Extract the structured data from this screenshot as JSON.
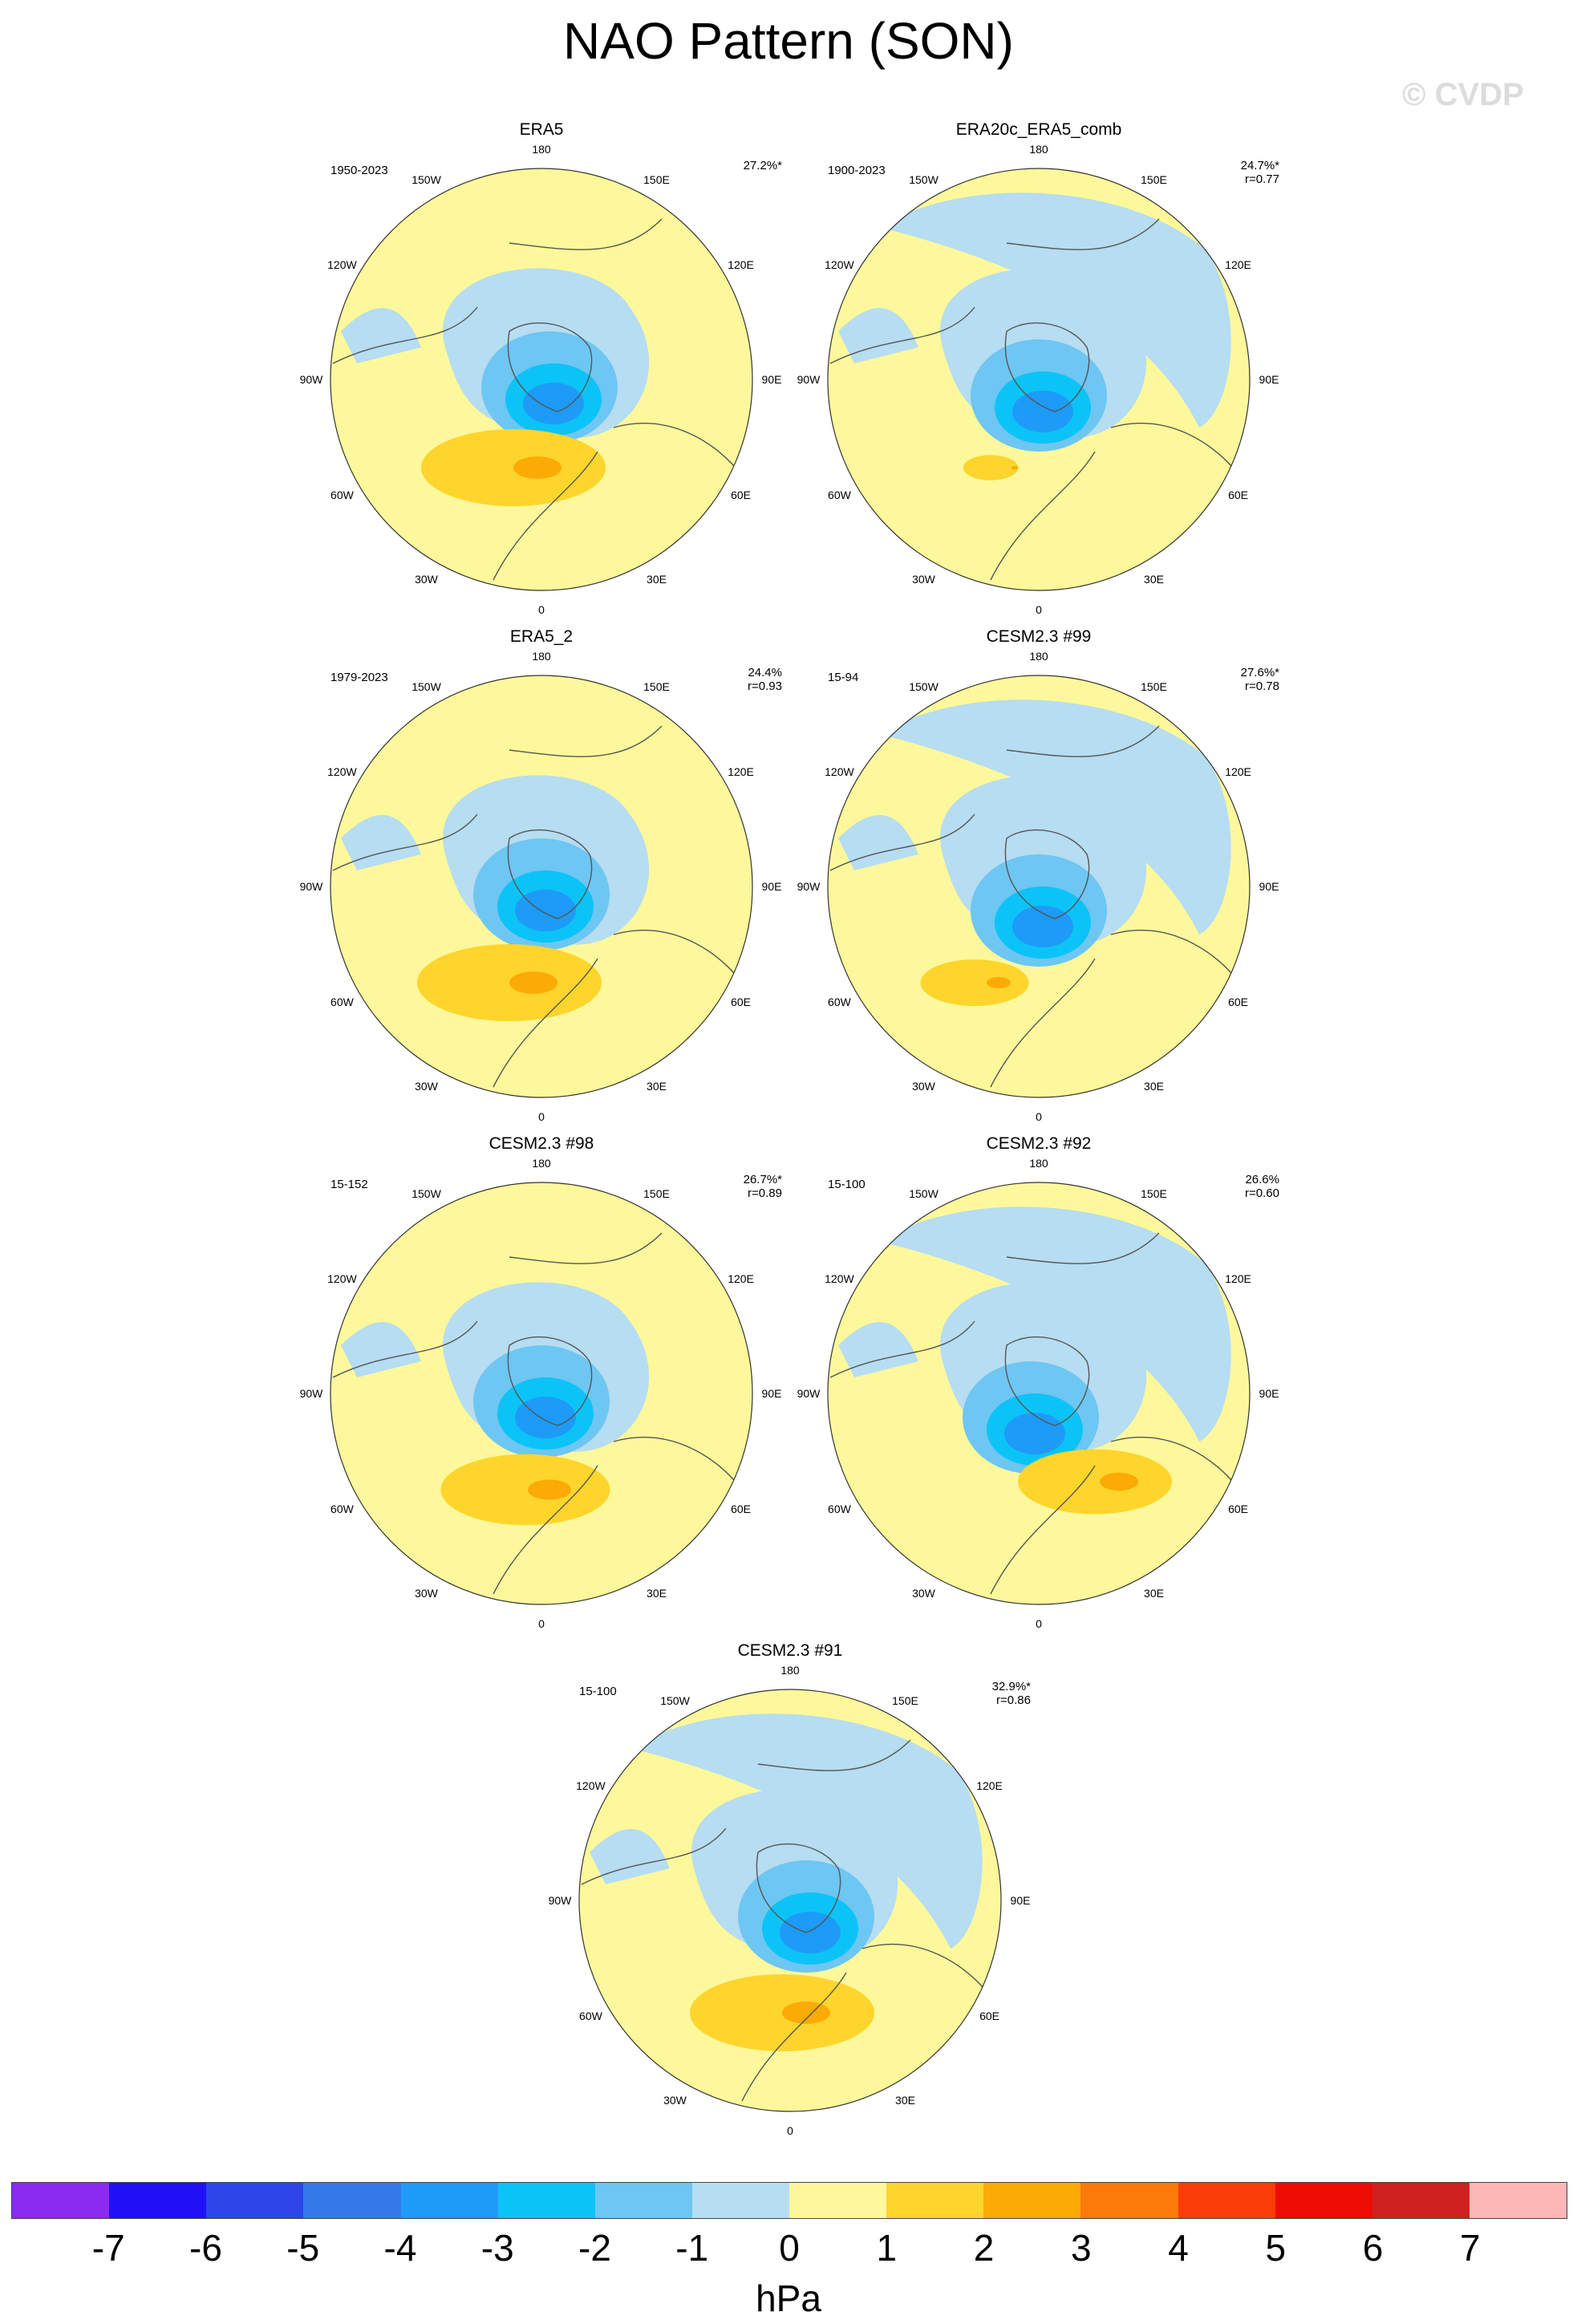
{
  "figure": {
    "title": "NAO Pattern (SON)",
    "watermark": "© CVDP"
  },
  "lon_labels": {
    "top": "180",
    "bottom": "0",
    "left": "90W",
    "right": "90E",
    "upper_left": "150W",
    "upper_right": "150E",
    "mid_upper_left": "120W",
    "mid_upper_right": "120E",
    "mid_lower_left": "60W",
    "mid_lower_right": "60E",
    "lower_left": "30W",
    "lower_right": "30E"
  },
  "panels": [
    {
      "title": "ERA5",
      "period": "1950-2023",
      "pct": "27.2%*",
      "r": ""
    },
    {
      "title": "ERA20c_ERA5_comb",
      "period": "1900-2023",
      "pct": "24.7%*",
      "r": "r=0.77"
    },
    {
      "title": "ERA5_2",
      "period": "1979-2023",
      "pct": "24.4%",
      "r": "r=0.93"
    },
    {
      "title": "CESM2.3 #99",
      "period": "15-94",
      "pct": "27.6%*",
      "r": "r=0.78"
    },
    {
      "title": "CESM2.3 #98",
      "period": "15-152",
      "pct": "26.7%*",
      "r": "r=0.89"
    },
    {
      "title": "CESM2.3 #92",
      "period": "15-100",
      "pct": "26.6%",
      "r": "r=0.60"
    },
    {
      "title": "CESM2.3 #91",
      "period": "15-100",
      "pct": "32.9%*",
      "r": "r=0.86"
    }
  ],
  "colorbar": {
    "units": "hPa",
    "labels": [
      "-7",
      "-6",
      "-5",
      "-4",
      "-3",
      "-2",
      "-1",
      "0",
      "1",
      "2",
      "3",
      "4",
      "5",
      "6",
      "7"
    ],
    "colors": [
      "#8a2bf0",
      "#1f10f5",
      "#2c46e8",
      "#3579e8",
      "#1e9bf7",
      "#0cc3f7",
      "#6ec6f2",
      "#b6ddf1",
      "#fdf89b",
      "#fdd52c",
      "#fcaa06",
      "#fb7a0a",
      "#fa3c07",
      "#ee0c05",
      "#d02121",
      "#fdb7b7"
    ]
  },
  "map_colors": {
    "ocean_neutral": "#fdf89b",
    "neg1": "#b6ddf1",
    "neg2": "#6ec6f2",
    "neg3": "#0cc3f7",
    "neg4": "#1e9bf7",
    "pos1": "#fdd52c",
    "pos2": "#fcaa06",
    "pos3": "#fb7a0a"
  }
}
